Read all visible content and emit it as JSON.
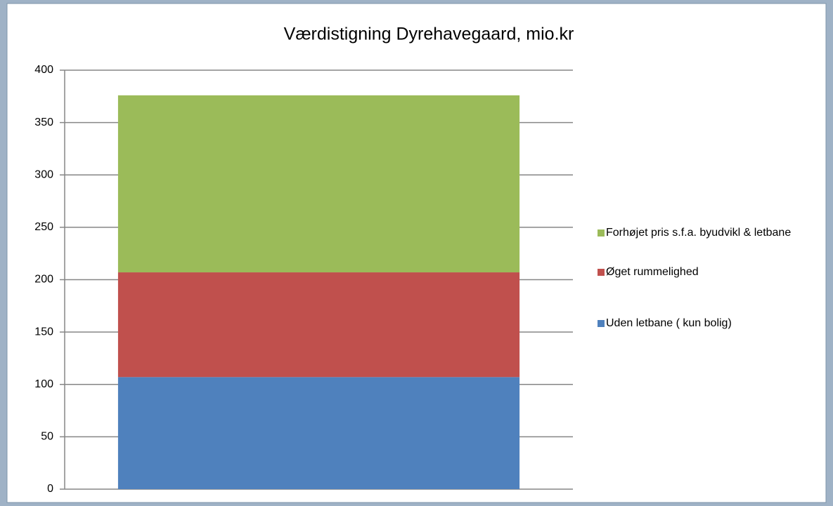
{
  "chart_data": {
    "type": "stacked_bar",
    "title": "Værdistigning Dyrehavegaard, mio.kr",
    "categories": [
      null
    ],
    "series": [
      {
        "name": "Uden letbane ( kun bolig)",
        "color": "#4f81bd",
        "values": [
          107
        ]
      },
      {
        "name": "Øget rummelighed",
        "color": "#c0504d",
        "values": [
          100
        ]
      },
      {
        "name": "Forhøjet pris s.f.a.  byudvikl & letbane",
        "color": "#9bbb59",
        "values": [
          169
        ]
      }
    ],
    "ylim": [
      0,
      400
    ],
    "yticks": [
      0,
      50,
      100,
      150,
      200,
      250,
      300,
      350,
      400
    ],
    "grid": true,
    "legend": "right"
  }
}
